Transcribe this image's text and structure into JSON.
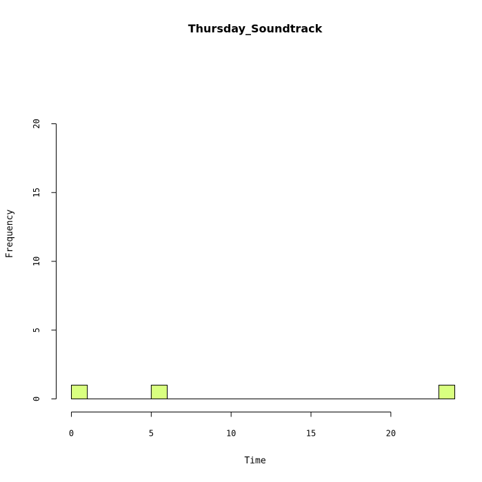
{
  "chart_data": {
    "type": "bar",
    "title": "Thursday_Soundtrack",
    "xlabel": "Time",
    "ylabel": "Frequency",
    "xlim": [
      0,
      24
    ],
    "ylim": [
      0,
      20
    ],
    "x_ticks": [
      "0",
      "5",
      "10",
      "15",
      "20"
    ],
    "y_ticks": [
      "0",
      "5",
      "10",
      "15",
      "20"
    ],
    "bin_width": 1,
    "bins": [
      {
        "start": 0,
        "end": 1,
        "count": 1
      },
      {
        "start": 1,
        "end": 2,
        "count": 0
      },
      {
        "start": 2,
        "end": 3,
        "count": 0
      },
      {
        "start": 3,
        "end": 4,
        "count": 0
      },
      {
        "start": 4,
        "end": 5,
        "count": 0
      },
      {
        "start": 5,
        "end": 6,
        "count": 1
      },
      {
        "start": 6,
        "end": 7,
        "count": 0
      },
      {
        "start": 7,
        "end": 8,
        "count": 0
      },
      {
        "start": 8,
        "end": 9,
        "count": 0
      },
      {
        "start": 9,
        "end": 10,
        "count": 0
      },
      {
        "start": 10,
        "end": 11,
        "count": 0
      },
      {
        "start": 11,
        "end": 12,
        "count": 0
      },
      {
        "start": 12,
        "end": 13,
        "count": 0
      },
      {
        "start": 13,
        "end": 14,
        "count": 0
      },
      {
        "start": 14,
        "end": 15,
        "count": 0
      },
      {
        "start": 15,
        "end": 16,
        "count": 0
      },
      {
        "start": 16,
        "end": 17,
        "count": 0
      },
      {
        "start": 17,
        "end": 18,
        "count": 0
      },
      {
        "start": 18,
        "end": 19,
        "count": 0
      },
      {
        "start": 19,
        "end": 20,
        "count": 0
      },
      {
        "start": 20,
        "end": 21,
        "count": 0
      },
      {
        "start": 21,
        "end": 22,
        "count": 0
      },
      {
        "start": 22,
        "end": 23,
        "count": 0
      },
      {
        "start": 23,
        "end": 24,
        "count": 1
      }
    ],
    "bar_color": "#d9ff80",
    "grid": false,
    "legend": "none"
  }
}
